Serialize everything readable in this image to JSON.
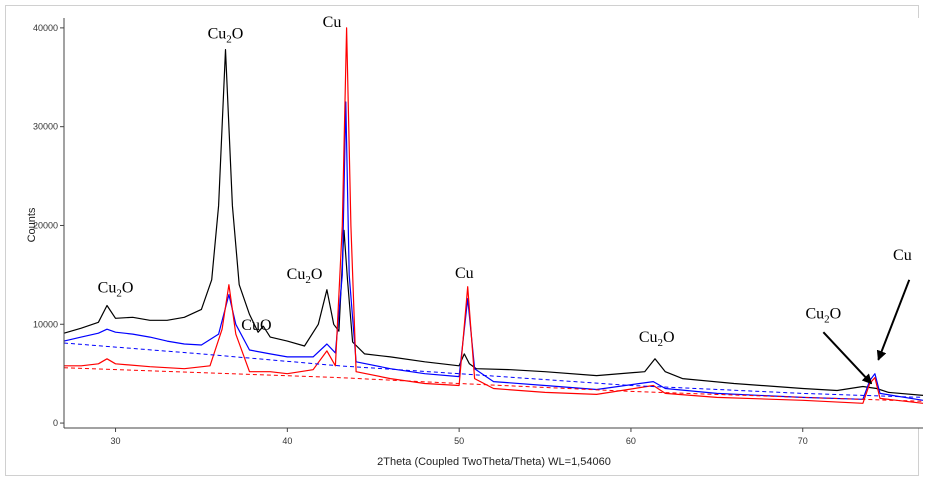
{
  "chart_data": {
    "type": "line",
    "xlabel": "2Theta (Coupled TwoTheta/Theta) WL=1,54060",
    "ylabel": "Counts",
    "xlim": [
      27,
      77
    ],
    "ylim": [
      -500,
      41000
    ],
    "xticks": [
      "30",
      "40",
      "50",
      "60",
      "70"
    ],
    "yticks": [
      "0",
      "10000",
      "20000",
      "30000",
      "40000"
    ],
    "grid": false,
    "legend": "none",
    "series": [
      {
        "color": "#000000",
        "style": "solid",
        "points": [
          [
            27,
            9100
          ],
          [
            28,
            9600
          ],
          [
            29,
            10200
          ],
          [
            29.5,
            11900
          ],
          [
            30,
            10600
          ],
          [
            31,
            10700
          ],
          [
            32,
            10400
          ],
          [
            33,
            10400
          ],
          [
            34,
            10700
          ],
          [
            35,
            11500
          ],
          [
            35.6,
            14500
          ],
          [
            36.0,
            22000
          ],
          [
            36.4,
            37800
          ],
          [
            36.8,
            22000
          ],
          [
            37.2,
            14000
          ],
          [
            37.8,
            11000
          ],
          [
            38.3,
            9200
          ],
          [
            38.6,
            9800
          ],
          [
            39.0,
            8700
          ],
          [
            40,
            8300
          ],
          [
            41,
            7800
          ],
          [
            41.8,
            10000
          ],
          [
            42.3,
            13500
          ],
          [
            42.7,
            10000
          ],
          [
            43.0,
            9300
          ],
          [
            43.3,
            19500
          ],
          [
            43.5,
            14500
          ],
          [
            43.8,
            8200
          ],
          [
            44.5,
            7000
          ],
          [
            46,
            6700
          ],
          [
            48,
            6200
          ],
          [
            50,
            5800
          ],
          [
            50.3,
            7000
          ],
          [
            50.6,
            6000
          ],
          [
            51,
            5500
          ],
          [
            53,
            5400
          ],
          [
            55,
            5200
          ],
          [
            58,
            4800
          ],
          [
            60.8,
            5200
          ],
          [
            61.4,
            6500
          ],
          [
            62,
            5200
          ],
          [
            63,
            4500
          ],
          [
            66,
            4000
          ],
          [
            70,
            3500
          ],
          [
            72,
            3300
          ],
          [
            73.5,
            3700
          ],
          [
            74.3,
            3500
          ],
          [
            75,
            3100
          ],
          [
            77,
            2800
          ]
        ]
      },
      {
        "color": "#0000ff",
        "style": "solid",
        "points": [
          [
            27,
            8300
          ],
          [
            28,
            8700
          ],
          [
            29,
            9100
          ],
          [
            29.5,
            9500
          ],
          [
            30,
            9200
          ],
          [
            31,
            9000
          ],
          [
            32,
            8700
          ],
          [
            33,
            8300
          ],
          [
            34,
            8000
          ],
          [
            35,
            7900
          ],
          [
            36.0,
            9000
          ],
          [
            36.6,
            13000
          ],
          [
            37.0,
            10000
          ],
          [
            37.8,
            7400
          ],
          [
            39,
            7000
          ],
          [
            40,
            6700
          ],
          [
            41.5,
            6700
          ],
          [
            42.3,
            8000
          ],
          [
            42.8,
            7100
          ],
          [
            43.2,
            15000
          ],
          [
            43.4,
            32500
          ],
          [
            43.6,
            15000
          ],
          [
            44,
            6200
          ],
          [
            46,
            5500
          ],
          [
            48,
            5000
          ],
          [
            50.0,
            4700
          ],
          [
            50.5,
            12600
          ],
          [
            50.9,
            5500
          ],
          [
            52,
            4200
          ],
          [
            55,
            3800
          ],
          [
            58,
            3400
          ],
          [
            61.3,
            4200
          ],
          [
            62,
            3500
          ],
          [
            65,
            3000
          ],
          [
            70,
            2600
          ],
          [
            73.5,
            2400
          ],
          [
            73.9,
            4300
          ],
          [
            74.2,
            5000
          ],
          [
            74.5,
            3000
          ],
          [
            77,
            2300
          ]
        ]
      },
      {
        "color": "#ff0000",
        "style": "solid",
        "points": [
          [
            27,
            5800
          ],
          [
            28,
            5800
          ],
          [
            29,
            6000
          ],
          [
            29.5,
            6500
          ],
          [
            30,
            6000
          ],
          [
            32,
            5700
          ],
          [
            34,
            5500
          ],
          [
            35.5,
            5800
          ],
          [
            36.2,
            9500
          ],
          [
            36.6,
            14000
          ],
          [
            37.0,
            9000
          ],
          [
            37.8,
            5200
          ],
          [
            39,
            5200
          ],
          [
            40,
            5000
          ],
          [
            41.5,
            5400
          ],
          [
            42.3,
            7300
          ],
          [
            42.8,
            5800
          ],
          [
            43.2,
            20000
          ],
          [
            43.45,
            40000
          ],
          [
            43.7,
            20000
          ],
          [
            44,
            5200
          ],
          [
            46,
            4500
          ],
          [
            48,
            4000
          ],
          [
            50.0,
            3800
          ],
          [
            50.5,
            13800
          ],
          [
            50.9,
            4500
          ],
          [
            52,
            3500
          ],
          [
            55,
            3100
          ],
          [
            58,
            2900
          ],
          [
            61.3,
            3800
          ],
          [
            62,
            3000
          ],
          [
            65,
            2600
          ],
          [
            70,
            2300
          ],
          [
            73.5,
            2000
          ],
          [
            73.9,
            4000
          ],
          [
            74.2,
            4600
          ],
          [
            74.5,
            2500
          ],
          [
            77,
            2000
          ]
        ]
      },
      {
        "color": "#0000ff",
        "style": "dashed",
        "points": [
          [
            27,
            8100
          ],
          [
            35,
            7000
          ],
          [
            43,
            5800
          ],
          [
            50,
            5000
          ],
          [
            60,
            3800
          ],
          [
            70,
            3000
          ],
          [
            77,
            2600
          ]
        ]
      },
      {
        "color": "#ff0000",
        "style": "dashed",
        "points": [
          [
            27,
            5600
          ],
          [
            35,
            5100
          ],
          [
            43,
            4600
          ],
          [
            50,
            4000
          ],
          [
            60,
            3200
          ],
          [
            70,
            2600
          ],
          [
            77,
            2200
          ]
        ]
      }
    ],
    "annotations": [
      {
        "base": "Cu",
        "sub": "2",
        "tail": "O",
        "x": 30.0,
        "y": 13200
      },
      {
        "base": "Cu",
        "sub": "2",
        "tail": "O",
        "x": 36.4,
        "y": 38900
      },
      {
        "base": "Cu",
        "sub": "",
        "tail": "",
        "x": 42.6,
        "y": 40100
      },
      {
        "base": "Cu",
        "sub": "",
        "tail": "O",
        "x": 38.2,
        "y": 9400
      },
      {
        "base": "Cu",
        "sub": "2",
        "tail": "O",
        "x": 41.0,
        "y": 14600
      },
      {
        "base": "Cu",
        "sub": "",
        "tail": "",
        "x": 50.3,
        "y": 14700
      },
      {
        "base": "Cu",
        "sub": "2",
        "tail": "O",
        "x": 61.5,
        "y": 8200
      },
      {
        "base": "Cu",
        "sub": "2",
        "tail": "O",
        "x": 71.2,
        "y": 10600
      },
      {
        "base": "Cu",
        "sub": "",
        "tail": "",
        "x": 75.8,
        "y": 16500
      }
    ],
    "arrows": [
      {
        "from": [
          71.2,
          9200
        ],
        "to": [
          74.0,
          4000
        ]
      },
      {
        "from": [
          76.2,
          14500
        ],
        "to": [
          74.4,
          6400
        ]
      }
    ]
  }
}
